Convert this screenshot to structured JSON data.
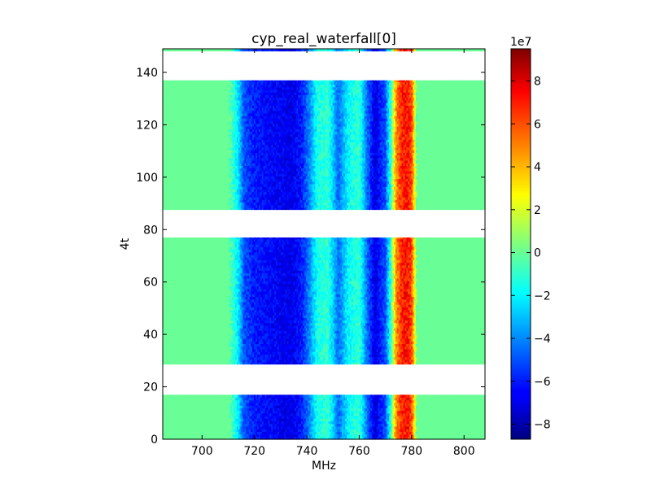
{
  "chart_data": {
    "type": "heatmap",
    "title": "cyp_real_waterfall[0]",
    "xlabel": "MHz",
    "ylabel": "4t",
    "xlim": [
      685,
      808
    ],
    "ylim": [
      0,
      149
    ],
    "xticks": [
      700,
      720,
      740,
      760,
      780,
      800
    ],
    "yticks": [
      0,
      20,
      40,
      60,
      80,
      100,
      120,
      140
    ],
    "colorbar": {
      "colormap": "jet",
      "range": [
        -8.7,
        9.5
      ],
      "ticks": [
        -8,
        -6,
        -4,
        -2,
        0,
        2,
        4,
        6,
        8
      ],
      "exponent_label": "1e7"
    },
    "grid": false,
    "data_bands": [
      [
        0,
        17
      ],
      [
        28.5,
        77
      ],
      [
        87.5,
        137
      ],
      [
        148,
        149
      ]
    ],
    "gap_bands": [
      [
        17,
        28.5
      ],
      [
        77,
        87.5
      ],
      [
        137,
        148
      ]
    ],
    "spectrum_profile_1e7": {
      "mhz": [
        685,
        710,
        712,
        714,
        716,
        720,
        728,
        734,
        738,
        741,
        744,
        748,
        752,
        756,
        760,
        763,
        766,
        770,
        772,
        774,
        776,
        778,
        780,
        782,
        808
      ],
      "value": [
        0,
        0,
        -1,
        -2.5,
        -5,
        -6,
        -6.5,
        -6.8,
        -6,
        -4,
        -1.5,
        -1,
        -4.5,
        -1.8,
        -1,
        -4.5,
        -7,
        -5,
        -1,
        4.5,
        6.5,
        7,
        6,
        0,
        0
      ]
    }
  }
}
